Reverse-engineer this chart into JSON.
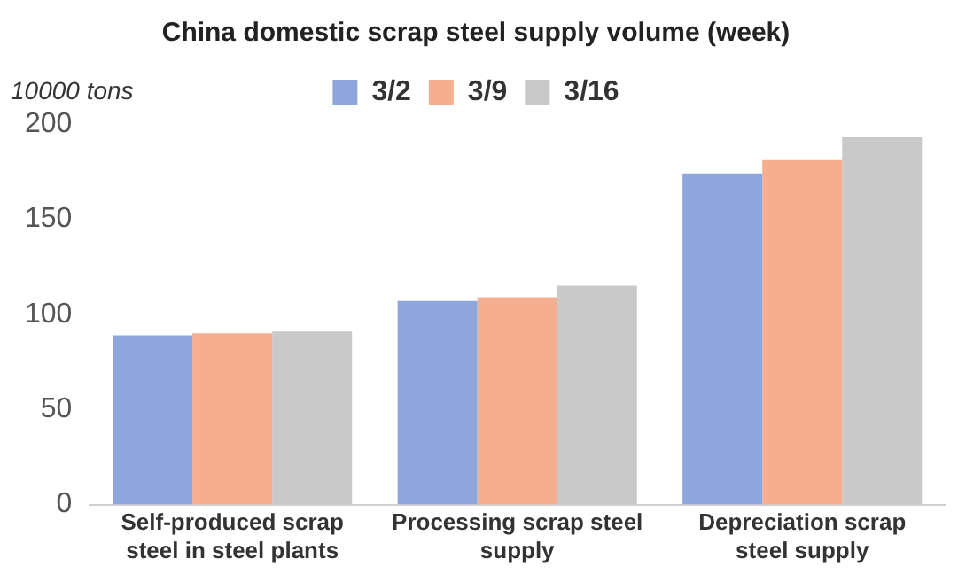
{
  "chart_data": {
    "type": "bar",
    "title": "China domestic scrap steel supply volume (week)",
    "ylabel": "10000 tons",
    "categories": [
      "Self-produced scrap steel in steel plants",
      "Processing scrap steel supply",
      "Depreciation scrap steel supply"
    ],
    "series": [
      {
        "name": "3/2",
        "color": "#8fa6dd",
        "values": [
          89,
          107,
          174
        ]
      },
      {
        "name": "3/9",
        "color": "#f5ae8e",
        "values": [
          90,
          109,
          181
        ]
      },
      {
        "name": "3/16",
        "color": "#c9c9c9",
        "values": [
          91,
          115,
          193
        ]
      }
    ],
    "ylim": [
      0,
      200
    ],
    "yticks": [
      0,
      50,
      100,
      150,
      200
    ],
    "grid": false,
    "legend": "top"
  }
}
